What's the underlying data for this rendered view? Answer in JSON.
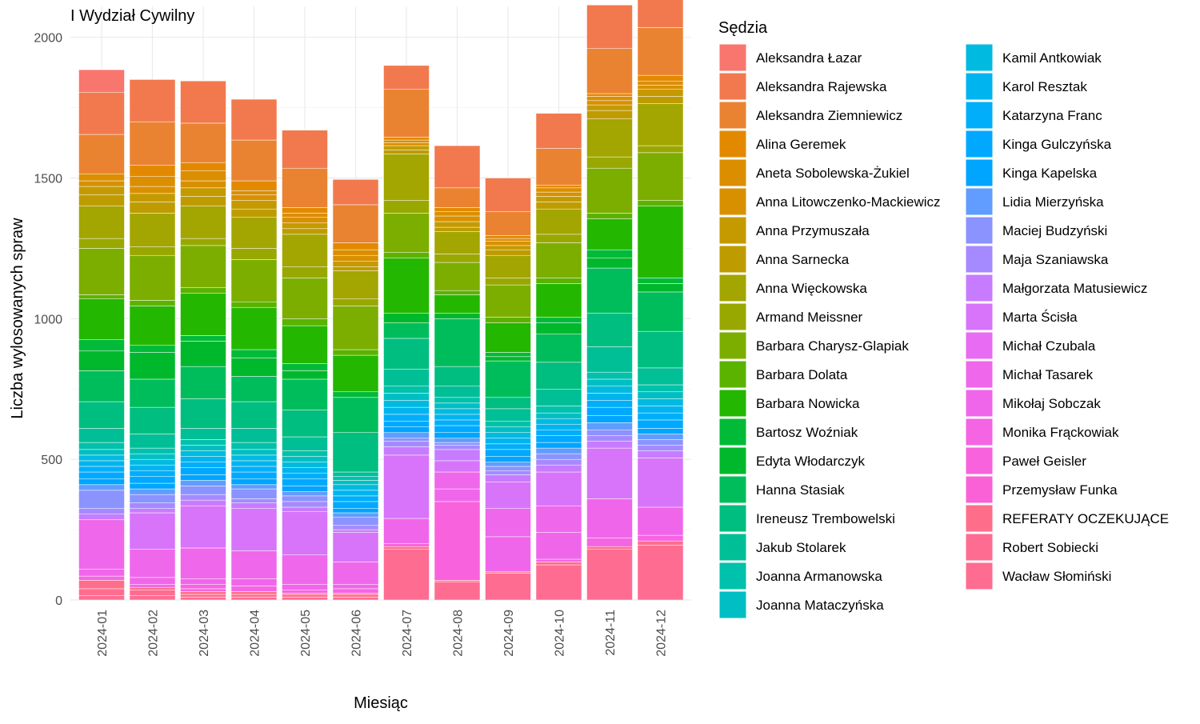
{
  "chart_data": {
    "type": "bar",
    "stacked": true,
    "title": "I Wydział Cywilny",
    "xlabel": "Miesiąc",
    "ylabel": "Liczba wylosowanych spraw",
    "ylim": [
      0,
      2110
    ],
    "yticks": [
      0,
      500,
      1000,
      1500,
      2000
    ],
    "grid": true,
    "legend_title": "Sędzia",
    "legend_position": "right",
    "categories": [
      "2024-01",
      "2024-02",
      "2024-03",
      "2024-04",
      "2024-05",
      "2024-06",
      "2024-07",
      "2024-08",
      "2024-09",
      "2024-10",
      "2024-11",
      "2024-12"
    ],
    "series": [
      {
        "name": "Wacław Słomiński",
        "color": "#FF6C91",
        "values": [
          15,
          15,
          10,
          10,
          10,
          10,
          0,
          0,
          0,
          0,
          0,
          0
        ]
      },
      {
        "name": "Robert Sobiecki",
        "color": "#FF6C91",
        "values": [
          25,
          20,
          10,
          10,
          10,
          10,
          180,
          65,
          95,
          125,
          180,
          195
        ]
      },
      {
        "name": "REFERATY OCZEKUJĄCE",
        "color": "#FE6E8A",
        "values": [
          30,
          10,
          10,
          10,
          5,
          5,
          10,
          5,
          5,
          10,
          10,
          15
        ]
      },
      {
        "name": "Przemysław Funka",
        "color": "#FB61D7",
        "values": [
          0,
          0,
          0,
          0,
          0,
          0,
          0,
          0,
          0,
          0,
          0,
          0
        ]
      },
      {
        "name": "Paweł Geisler",
        "color": "#F962DD",
        "values": [
          0,
          0,
          10,
          0,
          0,
          0,
          10,
          280,
          0,
          0,
          0,
          0
        ]
      },
      {
        "name": "Monika Frąckowiak",
        "color": "#F564E3",
        "values": [
          15,
          10,
          15,
          20,
          10,
          15,
          0,
          0,
          0,
          10,
          30,
          20
        ]
      },
      {
        "name": "Mikołaj Sobczak",
        "color": "#F066EA",
        "values": [
          25,
          25,
          20,
          25,
          20,
          15,
          90,
          45,
          125,
          95,
          140,
          100
        ]
      },
      {
        "name": "Michał Tasarek",
        "color": "#EF67EB",
        "values": [
          175,
          100,
          110,
          100,
          105,
          80,
          0,
          60,
          100,
          95,
          0,
          0
        ]
      },
      {
        "name": "Michał Czubala",
        "color": "#E76BF3",
        "values": [
          0,
          0,
          0,
          0,
          0,
          0,
          0,
          0,
          0,
          0,
          0,
          0
        ]
      },
      {
        "name": "Marta Ścisła",
        "color": "#D774FA",
        "values": [
          0,
          130,
          150,
          150,
          155,
          105,
          225,
          40,
          95,
          120,
          180,
          175
        ]
      },
      {
        "name": "Małgorzata Matusiewicz",
        "color": "#C77CFF",
        "values": [
          20,
          15,
          20,
          20,
          15,
          10,
          30,
          40,
          25,
          25,
          25,
          25
        ]
      },
      {
        "name": "Maja Szaniawska",
        "color": "#A58AFF",
        "values": [
          20,
          20,
          20,
          15,
          20,
          15,
          20,
          15,
          15,
          20,
          20,
          20
        ]
      },
      {
        "name": "Maciej Budzyński",
        "color": "#8B93FF",
        "values": [
          65,
          30,
          30,
          35,
          20,
          30,
          10,
          10,
          15,
          20,
          20,
          20
        ]
      },
      {
        "name": "Lidia Mierzyńska",
        "color": "#619CFF",
        "values": [
          20,
          20,
          20,
          15,
          15,
          15,
          20,
          15,
          15,
          20,
          25,
          20
        ]
      },
      {
        "name": "Kinga Kapelska",
        "color": "#00A5FF",
        "values": [
          20,
          20,
          20,
          20,
          20,
          15,
          20,
          20,
          20,
          20,
          25,
          20
        ]
      },
      {
        "name": "Kinga Gulczyńska",
        "color": "#00A9FF",
        "values": [
          25,
          25,
          25,
          25,
          25,
          25,
          20,
          25,
          25,
          25,
          30,
          30
        ]
      },
      {
        "name": "Katarzyna Franc",
        "color": "#00AEFA",
        "values": [
          20,
          20,
          20,
          20,
          20,
          20,
          25,
          20,
          20,
          20,
          25,
          25
        ]
      },
      {
        "name": "Karol Resztak",
        "color": "#00B4EF",
        "values": [
          20,
          20,
          20,
          20,
          20,
          20,
          25,
          20,
          20,
          20,
          25,
          25
        ]
      },
      {
        "name": "Kamil Antkowiak",
        "color": "#00BAE0",
        "values": [
          20,
          20,
          20,
          20,
          20,
          20,
          25,
          20,
          20,
          20,
          25,
          25
        ]
      },
      {
        "name": "Joanna Mataczyńska",
        "color": "#00BFC4",
        "values": [
          20,
          20,
          20,
          20,
          20,
          15,
          25,
          20,
          20,
          20,
          25,
          25
        ]
      },
      {
        "name": "Joanna Armanowska",
        "color": "#00C1AB",
        "values": [
          25,
          20,
          20,
          25,
          20,
          15,
          25,
          20,
          20,
          25,
          25,
          25
        ]
      },
      {
        "name": "Jakub Stolarek",
        "color": "#00BF97",
        "values": [
          50,
          50,
          40,
          50,
          50,
          15,
          60,
          40,
          45,
          60,
          90,
          60
        ]
      },
      {
        "name": "Ireneusz Trembowelski",
        "color": "#00BD80",
        "values": [
          95,
          95,
          105,
          95,
          95,
          140,
          110,
          70,
          40,
          95,
          120,
          130
        ]
      },
      {
        "name": "Hanna Stasiak",
        "color": "#00BD5C",
        "values": [
          110,
          100,
          115,
          90,
          110,
          125,
          55,
          170,
          130,
          100,
          160,
          140
        ]
      },
      {
        "name": "Edyta Włodarczyk",
        "color": "#00B82C",
        "values": [
          70,
          95,
          90,
          65,
          30,
          0,
          35,
          20,
          15,
          40,
          35,
          30
        ]
      },
      {
        "name": "Bartosz Woźniak",
        "color": "#01BB38",
        "values": [
          40,
          25,
          20,
          30,
          25,
          20,
          0,
          0,
          15,
          20,
          30,
          20
        ]
      },
      {
        "name": "Barbara Nowicka",
        "color": "#24B700",
        "values": [
          145,
          140,
          150,
          150,
          135,
          130,
          195,
          65,
          105,
          120,
          110,
          255
        ]
      },
      {
        "name": "Barbara Dolata",
        "color": "#5BB300",
        "values": [
          15,
          20,
          20,
          20,
          25,
          20,
          20,
          15,
          20,
          20,
          20,
          20
        ]
      },
      {
        "name": "Barbara Charysz-Glapiak",
        "color": "#7CAE00",
        "values": [
          165,
          160,
          150,
          150,
          145,
          155,
          140,
          100,
          115,
          125,
          160,
          170
        ]
      },
      {
        "name": "Armand Meissner",
        "color": "#99A800",
        "values": [
          35,
          30,
          25,
          40,
          40,
          25,
          45,
          30,
          25,
          30,
          40,
          25
        ]
      },
      {
        "name": "Anna Więckowska",
        "color": "#A3A500",
        "values": [
          115,
          120,
          115,
          110,
          115,
          100,
          165,
          80,
          80,
          90,
          135,
          150
        ]
      },
      {
        "name": "Anna Sarnecka",
        "color": "#BE9C00",
        "values": [
          40,
          40,
          35,
          30,
          20,
          15,
          15,
          15,
          20,
          25,
          30,
          25
        ]
      },
      {
        "name": "Anna Przymuszała",
        "color": "#C49A00",
        "values": [
          30,
          30,
          30,
          30,
          20,
          20,
          15,
          20,
          15,
          20,
          20,
          25
        ]
      },
      {
        "name": "Anna Litowczenko-Mackiewicz",
        "color": "#D89000",
        "values": [
          20,
          25,
          25,
          20,
          20,
          20,
          10,
          20,
          15,
          15,
          15,
          15
        ]
      },
      {
        "name": "Aneta Sobolewska-Żukiel",
        "color": "#DB8E00",
        "values": [
          25,
          35,
          35,
          15,
          15,
          20,
          10,
          15,
          10,
          15,
          15,
          15
        ]
      },
      {
        "name": "Alina Geremek",
        "color": "#E38900",
        "values": [
          0,
          40,
          30,
          35,
          20,
          25,
          10,
          15,
          10,
          10,
          10,
          20
        ]
      },
      {
        "name": "Aleksandra Ziemniewicz",
        "color": "#EA8331",
        "values": [
          140,
          155,
          140,
          145,
          140,
          135,
          170,
          70,
          85,
          130,
          160,
          170
        ]
      },
      {
        "name": "Aleksandra Rajewska",
        "color": "#F2794E",
        "values": [
          150,
          150,
          150,
          145,
          135,
          90,
          85,
          150,
          120,
          125,
          155,
          180
        ]
      },
      {
        "name": "Aleksandra Łazar",
        "color": "#F8766D",
        "values": [
          80,
          0,
          0,
          0,
          0,
          0,
          0,
          0,
          0,
          0,
          0,
          0
        ]
      }
    ],
    "legend_order": [
      "Aleksandra Łazar",
      "Aleksandra Rajewska",
      "Aleksandra Ziemniewicz",
      "Alina Geremek",
      "Aneta Sobolewska-Żukiel",
      "Anna Litowczenko-Mackiewicz",
      "Anna Przymuszała",
      "Anna Sarnecka",
      "Anna Więckowska",
      "Armand Meissner",
      "Barbara Charysz-Glapiak",
      "Barbara Dolata",
      "Barbara Nowicka",
      "Bartosz Woźniak",
      "Edyta Włodarczyk",
      "Hanna Stasiak",
      "Ireneusz Trembowelski",
      "Jakub Stolarek",
      "Joanna Armanowska",
      "Joanna Mataczyńska",
      "Kamil Antkowiak",
      "Karol Resztak",
      "Katarzyna Franc",
      "Kinga Gulczyńska",
      "Kinga Kapelska",
      "Lidia Mierzyńska",
      "Maciej Budzyński",
      "Maja Szaniawska",
      "Małgorzata Matusiewicz",
      "Marta Ścisła",
      "Michał Czubala",
      "Michał Tasarek",
      "Mikołaj Sobczak",
      "Monika Frąckowiak",
      "Paweł Geisler",
      "Przemysław Funka",
      "REFERATY OCZEKUJĄCE",
      "Robert Sobiecki",
      "Wacław Słomiński"
    ]
  }
}
